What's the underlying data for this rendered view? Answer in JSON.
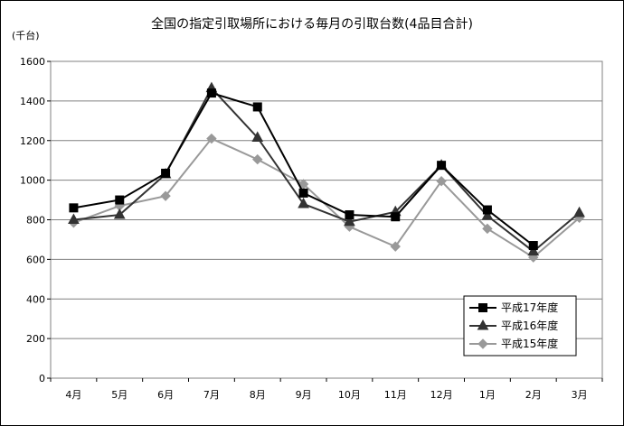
{
  "chart_data": {
    "type": "line",
    "title": "全国の指定引取場所における毎月の引取台数(4品目合計)",
    "ylabel": "(千台)",
    "xlabel": "",
    "categories": [
      "4月",
      "5月",
      "6月",
      "7月",
      "8月",
      "9月",
      "10月",
      "11月",
      "12月",
      "1月",
      "2月",
      "3月"
    ],
    "ylim": [
      0,
      1600
    ],
    "yticks": [
      "0",
      "200",
      "400",
      "600",
      "800",
      "1000",
      "1200",
      "1400",
      "1600"
    ],
    "grid": "horizontal",
    "legend_position": "bottom-right",
    "series": [
      {
        "name": "平成17年度",
        "marker": "square",
        "color": "#000000",
        "values": [
          860,
          900,
          1035,
          1440,
          1370,
          935,
          825,
          815,
          1075,
          850,
          670,
          null
        ]
      },
      {
        "name": "平成16年度",
        "marker": "triangle",
        "color": "#333333",
        "values": [
          800,
          825,
          1030,
          1465,
          1215,
          880,
          790,
          840,
          1075,
          820,
          640,
          835
        ]
      },
      {
        "name": "平成15年度",
        "marker": "diamond",
        "color": "#999999",
        "values": [
          785,
          870,
          920,
          1210,
          1105,
          980,
          765,
          665,
          995,
          755,
          610,
          810
        ]
      }
    ]
  }
}
